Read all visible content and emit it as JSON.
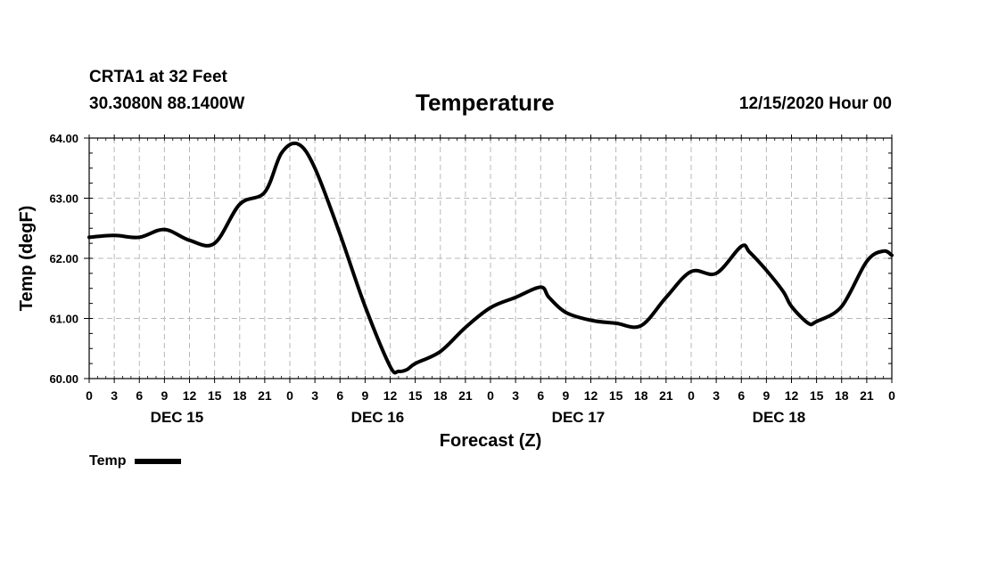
{
  "header": {
    "station": "CRTA1 at 32 Feet",
    "coords": "30.3080N 88.1400W",
    "title": "Temperature",
    "issued": "12/15/2020 Hour 00"
  },
  "chart_data": {
    "type": "line",
    "title": "Temperature",
    "xlabel": "Forecast (Z)",
    "ylabel": "Temp (degF)",
    "xlim": [
      0,
      96
    ],
    "ylim": [
      60.0,
      64.0
    ],
    "grid": true,
    "yticks": [
      "60.00",
      "61.00",
      "62.00",
      "63.00",
      "64.00"
    ],
    "xtick_labels": [
      "0",
      "3",
      "6",
      "9",
      "12",
      "15",
      "18",
      "21",
      "0",
      "3",
      "6",
      "9",
      "12",
      "15",
      "18",
      "21",
      "0",
      "3",
      "6",
      "9",
      "12",
      "15",
      "18",
      "21",
      "0",
      "3",
      "6",
      "9",
      "12",
      "15",
      "18",
      "21",
      "0"
    ],
    "day_labels": [
      "DEC 15",
      "DEC 16",
      "DEC 17",
      "DEC 18"
    ],
    "legend": {
      "position": "bottom-left",
      "entries": [
        "Temp"
      ]
    },
    "series": [
      {
        "name": "Temp",
        "color": "#000000",
        "x": [
          0,
          3,
          6,
          9,
          12,
          15,
          18,
          21,
          23,
          25,
          27,
          30,
          33,
          36,
          37,
          38,
          39,
          42,
          45,
          48,
          51,
          54,
          55,
          57,
          60,
          63,
          66,
          69,
          72,
          75,
          78,
          79,
          81,
          83,
          84,
          86,
          87,
          90,
          93,
          95,
          96
        ],
        "y": [
          62.35,
          62.38,
          62.35,
          62.48,
          62.3,
          62.25,
          62.9,
          63.1,
          63.75,
          63.9,
          63.5,
          62.4,
          61.2,
          60.2,
          60.12,
          60.15,
          60.25,
          60.45,
          60.85,
          61.18,
          61.35,
          61.52,
          61.35,
          61.1,
          60.97,
          60.92,
          60.88,
          61.35,
          61.78,
          61.75,
          62.2,
          62.1,
          61.8,
          61.45,
          61.2,
          60.92,
          60.95,
          61.2,
          61.95,
          62.12,
          62.05
        ]
      }
    ]
  },
  "legend_label": "Temp"
}
